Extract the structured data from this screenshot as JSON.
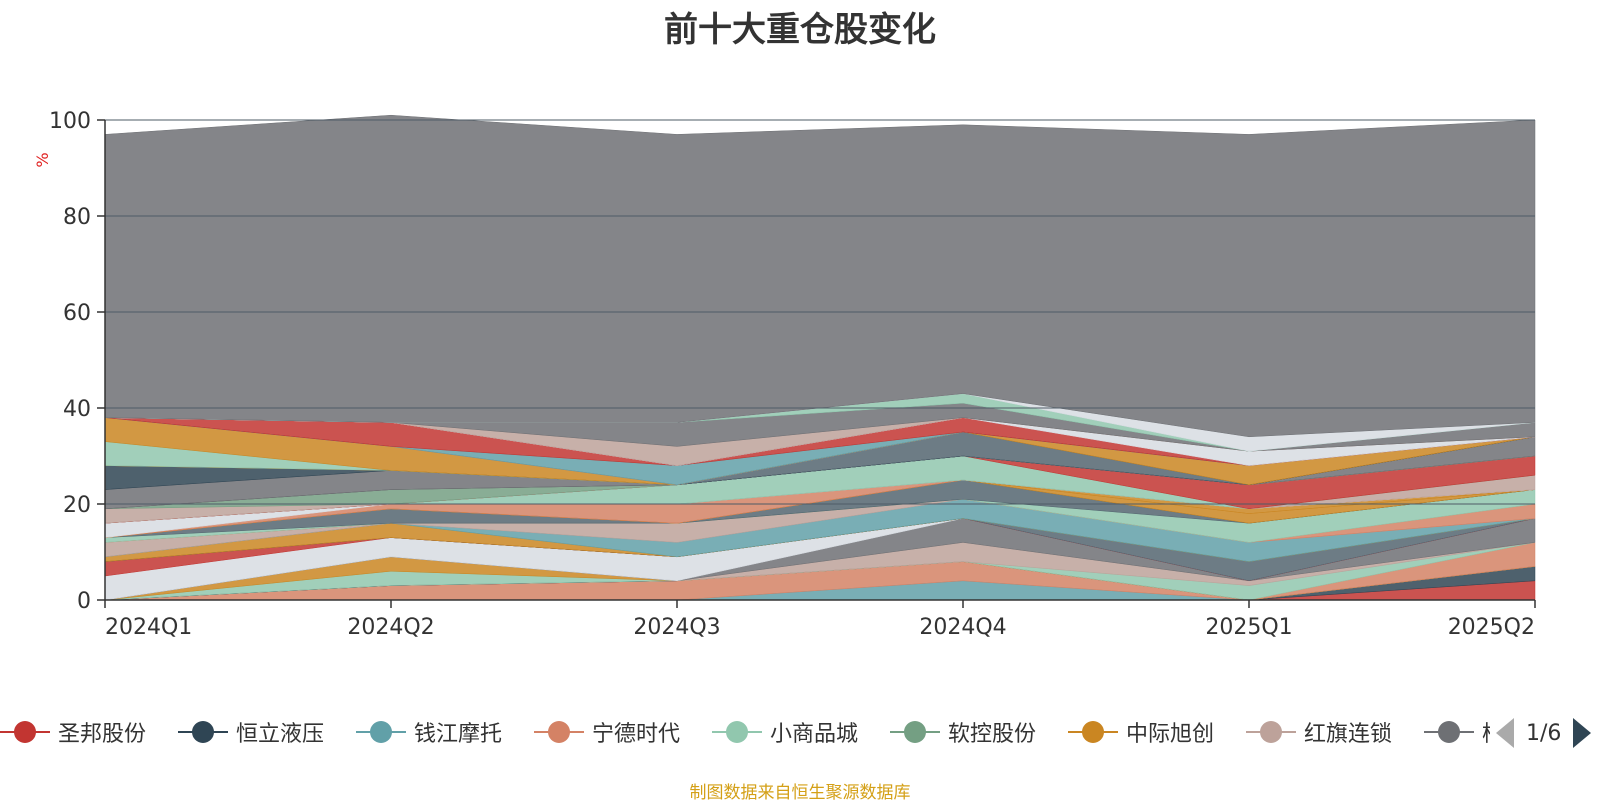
{
  "title": "前十大重仓股变化",
  "source_note": "制图数据来自恒生聚源数据库",
  "legend": {
    "pager_text": "1/6",
    "items": [
      {
        "name": "圣邦股份",
        "color": "#c23531"
      },
      {
        "name": "恒立液压",
        "color": "#2f4554"
      },
      {
        "name": "钱江摩托",
        "color": "#61a0a8"
      },
      {
        "name": "宁德时代",
        "color": "#d48265"
      },
      {
        "name": "小商品城",
        "color": "#91c7ae"
      },
      {
        "name": "软控股份",
        "color": "#749f83"
      },
      {
        "name": "中际旭创",
        "color": "#ca8622"
      },
      {
        "name": "红旗连锁",
        "color": "#bda29a"
      },
      {
        "name": "柏",
        "color": "#6e7074"
      }
    ]
  },
  "chart_data": {
    "type": "area",
    "stacked": true,
    "categories": [
      "2024Q1",
      "2024Q2",
      "2024Q3",
      "2024Q4",
      "2025Q1",
      "2025Q2"
    ],
    "ylabel": "%",
    "ylim": [
      0,
      100
    ],
    "yticks": [
      0,
      20,
      40,
      60,
      80,
      100
    ],
    "grid": true,
    "legend_position": "bottom",
    "series": [
      {
        "color": "#61a0a8",
        "values": [
          0,
          0,
          0,
          4,
          0,
          0
        ]
      },
      {
        "color": "#d48265",
        "values": [
          0,
          3,
          4,
          4,
          0,
          0
        ]
      },
      {
        "color": "#c23531",
        "values": [
          0,
          0,
          0,
          0,
          0,
          4
        ]
      },
      {
        "color": "#2f4554",
        "values": [
          0,
          0,
          0,
          0,
          0,
          3
        ]
      },
      {
        "color": "#91c7ae",
        "values": [
          0,
          3,
          0,
          0,
          0,
          0
        ]
      },
      {
        "color": "#ca8622",
        "values": [
          0,
          3,
          0,
          0,
          0,
          0
        ]
      },
      {
        "color": "#d48265",
        "values": [
          0,
          0,
          0,
          0,
          0,
          5
        ]
      },
      {
        "color": "#91c7ae",
        "values": [
          0,
          0,
          0,
          0,
          3,
          0
        ]
      },
      {
        "color": "#bda29a",
        "values": [
          0,
          0,
          0,
          4,
          1,
          0
        ]
      },
      {
        "color": "#6e7074",
        "values": [
          0,
          0,
          0,
          5,
          0,
          5
        ]
      },
      {
        "color": "#d7dce2",
        "values": [
          5,
          4,
          5,
          0,
          0,
          0
        ]
      },
      {
        "color": "#c23531",
        "values": [
          3,
          0,
          0,
          0,
          0,
          0
        ]
      },
      {
        "color": "#546570",
        "values": [
          0,
          0,
          0,
          0,
          4,
          0
        ]
      },
      {
        "color": "#ca8622",
        "values": [
          1,
          3,
          0,
          0,
          0,
          0
        ]
      },
      {
        "color": "#61a0a8",
        "values": [
          0,
          0,
          3,
          4,
          4,
          0
        ]
      },
      {
        "color": "#bda29a",
        "values": [
          3,
          0,
          4,
          0,
          0,
          0
        ]
      },
      {
        "color": "#d48265",
        "values": [
          0,
          0,
          0,
          0,
          0,
          3
        ]
      },
      {
        "color": "#91c7ae",
        "values": [
          1,
          0,
          0,
          0,
          4,
          3
        ]
      },
      {
        "color": "#546570",
        "values": [
          0,
          3,
          0,
          4,
          0,
          0
        ]
      },
      {
        "color": "#ca8622",
        "values": [
          0,
          0,
          0,
          0,
          2,
          0
        ]
      },
      {
        "color": "#ca8622",
        "values": [
          0,
          0,
          0,
          0,
          1,
          0
        ]
      },
      {
        "color": "#d48265",
        "values": [
          0,
          1,
          4,
          0,
          0,
          0
        ]
      },
      {
        "color": "#d7dce2",
        "values": [
          3,
          0,
          0,
          0,
          0,
          0
        ]
      },
      {
        "color": "#bda29a",
        "values": [
          0,
          0,
          0,
          0,
          0,
          3
        ]
      },
      {
        "color": "#91c7ae",
        "values": [
          0,
          0,
          4,
          5,
          0,
          0
        ]
      },
      {
        "color": "#c23531",
        "values": [
          0,
          0,
          0,
          0,
          5,
          4
        ]
      },
      {
        "color": "#bda29a",
        "values": [
          3,
          0,
          0,
          0,
          0,
          0
        ]
      },
      {
        "color": "#749f83",
        "values": [
          0,
          3,
          0,
          0,
          0,
          0
        ]
      },
      {
        "color": "#6e7074",
        "values": [
          0,
          0,
          0,
          0,
          0,
          4
        ]
      },
      {
        "color": "#6e7074",
        "values": [
          4,
          4,
          0,
          0,
          0,
          0
        ]
      },
      {
        "color": "#2f4554",
        "values": [
          5,
          0,
          0,
          0,
          0,
          0
        ]
      },
      {
        "color": "#546570",
        "values": [
          0,
          0,
          0,
          5,
          0,
          0
        ]
      },
      {
        "color": "#ca8622",
        "values": [
          0,
          0,
          0,
          0,
          4,
          0
        ]
      },
      {
        "color": "#91c7ae",
        "values": [
          5,
          0,
          0,
          0,
          0,
          0
        ]
      },
      {
        "color": "#ca8622",
        "values": [
          5,
          5,
          0,
          0,
          0,
          0
        ]
      },
      {
        "color": "#d48265",
        "values": [
          0,
          0,
          0,
          0,
          0,
          0
        ]
      },
      {
        "color": "#61a0a8",
        "values": [
          0,
          0,
          4,
          0,
          0,
          0
        ]
      },
      {
        "color": "#c23531",
        "values": [
          0,
          5,
          0,
          3,
          0,
          0
        ]
      },
      {
        "color": "#d7dce2",
        "values": [
          0,
          0,
          0,
          0,
          3,
          0
        ]
      },
      {
        "color": "#bda29a",
        "values": [
          0,
          0,
          4,
          0,
          0,
          0
        ]
      },
      {
        "color": "#6e7074",
        "values": [
          0,
          0,
          5,
          3,
          0,
          3
        ]
      },
      {
        "color": "#91c7ae",
        "values": [
          0,
          0,
          0,
          2,
          0,
          0
        ]
      },
      {
        "color": "#d7dce2",
        "values": [
          0,
          0,
          0,
          0,
          3,
          0
        ]
      },
      {
        "color": "#6e7074",
        "values": [
          59,
          64,
          60,
          56,
          63,
          63
        ]
      }
    ]
  }
}
